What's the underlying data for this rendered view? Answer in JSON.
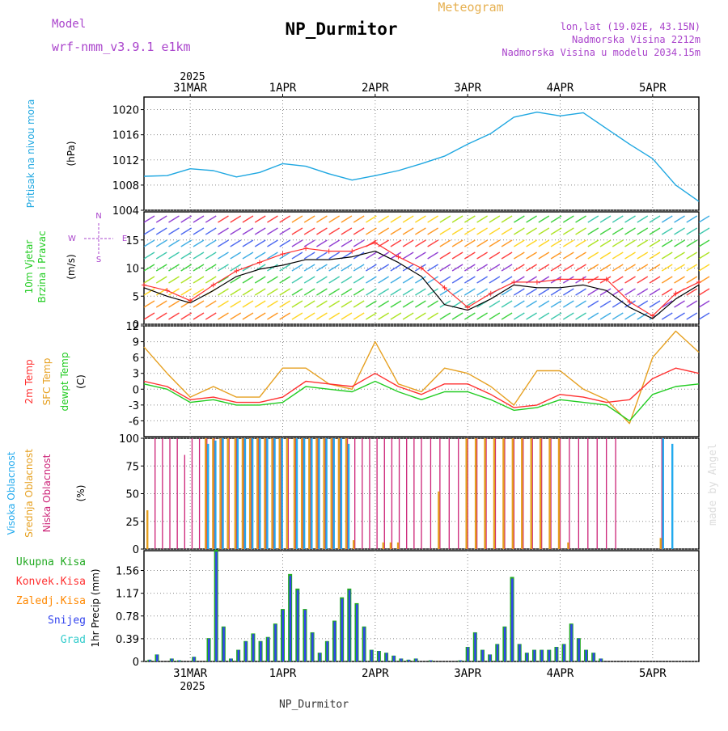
{
  "header": {
    "title": "NP_Durmitor",
    "subtitle": "Meteogram",
    "model_label": "Model",
    "model_name": "wrf-nmm_v3.9.1 e1km",
    "location": "lon,lat (19.02E, 43.15N)",
    "altitude": "Nadmorska Visina 2212m",
    "model_altitude": "Nadmorska Visina u modelu 2034.15m",
    "year": "2025",
    "footer": "NP_Durmitor",
    "credit": "made by Angel"
  },
  "colors": {
    "pressure": "#1ea7e1",
    "wind_line": "#000000",
    "wind_gust": "#ff3030",
    "temp_2m": "#ff3030",
    "temp_sfc": "#e6a020",
    "temp_dew": "#22cc22",
    "cloud_high": "#22aaee",
    "cloud_mid": "#e6a020",
    "cloud_low": "#cc2277",
    "precip_total": "#22aa22",
    "precip_conv": "#ff3030",
    "precip_freez": "#ff8800",
    "precip_snow": "#3344ee",
    "precip_hail": "#33cccc",
    "purple_text": "#aa44cc",
    "gold_text": "#e6b050",
    "grid": "#888888"
  },
  "time_axis": {
    "day_labels": [
      "31MAR",
      "1APR",
      "2APR",
      "3APR",
      "4APR",
      "5APR"
    ],
    "day_index": [
      0.5,
      1.5,
      2.5,
      3.5,
      4.5,
      5.5
    ],
    "start": 0,
    "end": 6.0
  },
  "chart_data": [
    {
      "type": "line",
      "title": "Pritisak na nivou mora",
      "ylabel": "(hPa)",
      "ylim": [
        1004,
        1022
      ],
      "yticks": [
        "1004",
        "1008",
        "1012",
        "1016",
        "1020"
      ],
      "ytick_values": [
        1004,
        1008,
        1012,
        1016,
        1020
      ],
      "x": [
        0.0,
        0.25,
        0.5,
        0.75,
        1.0,
        1.25,
        1.5,
        1.75,
        2.0,
        2.25,
        2.5,
        2.75,
        3.0,
        3.25,
        3.5,
        3.75,
        4.0,
        4.25,
        4.5,
        4.75,
        5.0,
        5.25,
        5.5,
        5.75,
        6.0
      ],
      "series": [
        {
          "values": [
            1009.4,
            1009.5,
            1010.6,
            1010.3,
            1009.3,
            1010.0,
            1011.4,
            1011.0,
            1009.8,
            1008.8,
            1009.5,
            1010.3,
            1011.4,
            1012.6,
            1014.5,
            1016.2,
            1018.8,
            1019.6,
            1019.0,
            1019.5,
            1017.0,
            1014.5,
            1012.2,
            1008.0,
            1005.4
          ]
        }
      ]
    },
    {
      "type": "line",
      "title": "10m Vjetar Brzina i Pravac",
      "ylabel": "(m/s)",
      "direction_key": [
        "N",
        "W",
        "E",
        "S"
      ],
      "ylim": [
        0,
        20
      ],
      "yticks": [
        "0",
        "5",
        "10",
        "15"
      ],
      "ytick_values": [
        0,
        5,
        10,
        15
      ],
      "x": [
        0.0,
        0.25,
        0.5,
        0.75,
        1.0,
        1.25,
        1.5,
        1.75,
        2.0,
        2.25,
        2.5,
        2.75,
        3.0,
        3.25,
        3.5,
        3.75,
        4.0,
        4.25,
        4.5,
        4.75,
        5.0,
        5.25,
        5.5,
        5.75,
        6.0
      ],
      "series": [
        {
          "name": "speed",
          "values": [
            6.5,
            5.0,
            3.8,
            6.0,
            8.5,
            9.8,
            10.5,
            11.5,
            11.5,
            12.0,
            13.0,
            11.0,
            8.5,
            3.5,
            2.5,
            4.5,
            7.0,
            6.5,
            6.5,
            7.0,
            6.0,
            3.0,
            1.0,
            4.5,
            7.0
          ]
        },
        {
          "name": "gust",
          "values": [
            7.0,
            6.0,
            4.2,
            7.0,
            9.5,
            11.0,
            12.5,
            13.5,
            13.0,
            13.0,
            14.5,
            12.0,
            10.0,
            6.5,
            3.0,
            5.5,
            7.5,
            7.5,
            8.0,
            8.0,
            8.0,
            4.0,
            1.5,
            5.5,
            7.5
          ]
        }
      ]
    },
    {
      "type": "line",
      "title": "2m Temp / SFC Temp / dewpt Temp",
      "ylabel": "(C)",
      "ylim": [
        -9,
        12
      ],
      "yticks": [
        "-6",
        "-3",
        "0",
        "3",
        "6",
        "9",
        "12"
      ],
      "ytick_values": [
        -6,
        -3,
        0,
        3,
        6,
        9,
        12
      ],
      "x": [
        0.0,
        0.25,
        0.5,
        0.75,
        1.0,
        1.25,
        1.5,
        1.75,
        2.0,
        2.25,
        2.5,
        2.75,
        3.0,
        3.25,
        3.5,
        3.75,
        4.0,
        4.25,
        4.5,
        4.75,
        5.0,
        5.25,
        5.5,
        5.75,
        6.0
      ],
      "series": [
        {
          "name": "2m Temp",
          "values": [
            1.5,
            0.5,
            -2.0,
            -1.5,
            -2.5,
            -2.5,
            -1.5,
            1.5,
            1.0,
            0.5,
            3.0,
            0.5,
            -1.0,
            1.0,
            1.0,
            -1.0,
            -3.5,
            -3.0,
            -1.0,
            -1.5,
            -2.5,
            -2.0,
            2.0,
            4.0,
            3.0
          ]
        },
        {
          "name": "SFC Temp",
          "values": [
            8.0,
            3.0,
            -1.5,
            0.5,
            -1.5,
            -1.5,
            4.0,
            4.0,
            1.0,
            0.0,
            9.0,
            1.0,
            -0.5,
            4.0,
            3.0,
            0.5,
            -3.0,
            3.5,
            3.5,
            0.0,
            -2.0,
            -6.5,
            6.0,
            11.0,
            7.0
          ]
        },
        {
          "name": "dewpt Temp",
          "values": [
            1.0,
            0.0,
            -2.5,
            -2.0,
            -3.0,
            -3.0,
            -2.5,
            0.5,
            0.0,
            -0.5,
            1.5,
            -0.5,
            -2.0,
            -0.5,
            -0.5,
            -2.0,
            -4.0,
            -3.5,
            -2.0,
            -2.5,
            -3.0,
            -6.0,
            -1.0,
            0.5,
            1.0
          ]
        }
      ]
    },
    {
      "type": "bar",
      "title": "Visoka / Srednja / Niska Oblacnost",
      "ylabel": "(%)",
      "ylim": [
        0,
        100
      ],
      "yticks": [
        "0",
        "25",
        "50",
        "75",
        "100"
      ],
      "ytick_values": [
        0,
        25,
        50,
        75,
        100
      ],
      "x": [
        0.05,
        0.12,
        0.2,
        0.28,
        0.36,
        0.44,
        0.52,
        0.6,
        0.68,
        0.76,
        0.84,
        0.92,
        1.0,
        1.08,
        1.16,
        1.24,
        1.32,
        1.4,
        1.48,
        1.56,
        1.64,
        1.72,
        1.8,
        1.88,
        1.96,
        2.04,
        2.12,
        2.2,
        2.28,
        2.36,
        2.44,
        2.52,
        2.6,
        2.68,
        2.76,
        2.84,
        2.92,
        3.0,
        3.1,
        3.2,
        3.3,
        3.4,
        3.5,
        3.6,
        3.7,
        3.8,
        3.9,
        4.0,
        4.1,
        4.2,
        4.3,
        4.4,
        4.5,
        4.6,
        4.7,
        4.8,
        4.9,
        5.0,
        5.1,
        5.2,
        5.3,
        5.4,
        5.5,
        5.6,
        5.7,
        5.8,
        5.9
      ],
      "series": [
        {
          "name": "Visoka Oblacnost",
          "values": [
            0,
            0,
            0,
            0,
            0,
            0,
            0,
            0,
            95,
            98,
            100,
            0,
            100,
            100,
            100,
            100,
            100,
            100,
            100,
            0,
            100,
            100,
            100,
            100,
            100,
            100,
            100,
            95,
            0,
            0,
            0,
            0,
            0,
            0,
            0,
            0,
            0,
            0,
            0,
            0,
            0,
            0,
            0,
            0,
            0,
            0,
            0,
            0,
            0,
            0,
            0,
            0,
            0,
            0,
            0,
            0,
            0,
            0,
            0,
            0,
            0,
            0,
            0,
            100,
            95,
            0,
            0
          ]
        },
        {
          "name": "Srednja Oblacnost",
          "values": [
            35,
            0,
            0,
            0,
            0,
            0,
            0,
            0,
            100,
            100,
            100,
            100,
            100,
            100,
            100,
            100,
            100,
            100,
            100,
            100,
            100,
            100,
            100,
            100,
            100,
            100,
            100,
            100,
            8,
            0,
            0,
            0,
            6,
            6,
            6,
            0,
            0,
            0,
            0,
            52,
            0,
            0,
            100,
            100,
            100,
            100,
            100,
            100,
            100,
            100,
            100,
            100,
            100,
            6,
            0,
            0,
            0,
            0,
            0,
            0,
            0,
            0,
            0,
            10,
            0,
            0,
            0
          ]
        },
        {
          "name": "Niska Oblacnost",
          "values": [
            0,
            100,
            100,
            100,
            100,
            85,
            100,
            100,
            100,
            100,
            100,
            100,
            100,
            100,
            100,
            100,
            100,
            100,
            100,
            100,
            100,
            100,
            100,
            100,
            100,
            100,
            100,
            100,
            100,
            100,
            100,
            100,
            100,
            100,
            100,
            100,
            100,
            100,
            100,
            100,
            100,
            100,
            100,
            100,
            100,
            100,
            100,
            100,
            100,
            100,
            100,
            100,
            100,
            100,
            100,
            100,
            100,
            100,
            100,
            0,
            0,
            0,
            0,
            100,
            0,
            0,
            0
          ]
        }
      ]
    },
    {
      "type": "bar",
      "title": "1hr Precip",
      "ylabel": "1hr Precip (mm)",
      "ylim": [
        0,
        1.9
      ],
      "yticks": [
        "0",
        "0.39",
        "0.78",
        "1.17",
        "1.56"
      ],
      "ytick_values": [
        0,
        0.39,
        0.78,
        1.17,
        1.56
      ],
      "legend": [
        "Ukupna Kisa",
        "Konvek.Kisa",
        "Zaledj.Kisa",
        "Snijeg",
        "Grad"
      ],
      "x": [
        0.06,
        0.14,
        0.22,
        0.3,
        0.38,
        0.46,
        0.54,
        0.62,
        0.7,
        0.78,
        0.86,
        0.94,
        1.02,
        1.1,
        1.18,
        1.26,
        1.34,
        1.42,
        1.5,
        1.58,
        1.66,
        1.74,
        1.82,
        1.9,
        1.98,
        2.06,
        2.14,
        2.22,
        2.3,
        2.38,
        2.46,
        2.54,
        2.62,
        2.7,
        2.78,
        2.86,
        2.94,
        3.02,
        3.1,
        3.18,
        3.26,
        3.34,
        3.42,
        3.5,
        3.58,
        3.66,
        3.74,
        3.82,
        3.9,
        3.98,
        4.06,
        4.14,
        4.22,
        4.3,
        4.38,
        4.46,
        4.54,
        4.62,
        4.7,
        4.78,
        4.86,
        4.94,
        5.02,
        5.1,
        5.18,
        5.26,
        5.34,
        5.42,
        5.5
      ],
      "series": [
        {
          "name": "Ukupna Kisa",
          "values": [
            0.03,
            0.12,
            0.0,
            0.05,
            0.02,
            0.0,
            0.08,
            0.0,
            0.4,
            1.92,
            0.6,
            0.05,
            0.2,
            0.35,
            0.48,
            0.35,
            0.42,
            0.65,
            0.9,
            1.5,
            1.25,
            0.9,
            0.5,
            0.15,
            0.35,
            0.7,
            1.1,
            1.25,
            1.0,
            0.6,
            0.2,
            0.18,
            0.15,
            0.1,
            0.05,
            0.03,
            0.05,
            0.0,
            0.02,
            0.0,
            0.0,
            0.0,
            0.02,
            0.25,
            0.5,
            0.2,
            0.12,
            0.3,
            0.6,
            1.45,
            0.3,
            0.15,
            0.2,
            0.2,
            0.2,
            0.25,
            0.3,
            0.65,
            0.4,
            0.2,
            0.15,
            0.05,
            0.0,
            0.0,
            0.0,
            0.0,
            0.0,
            0.0,
            0.0
          ]
        }
      ]
    }
  ]
}
